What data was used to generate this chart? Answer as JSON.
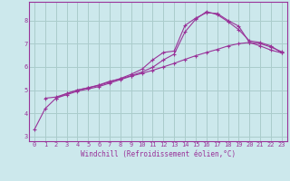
{
  "background_color": "#cce8ec",
  "grid_color": "#aacccc",
  "line_color": "#993399",
  "xlabel": "Windchill (Refroidissement éolien,°C)",
  "xlim": [
    -0.5,
    23.5
  ],
  "ylim": [
    2.8,
    8.8
  ],
  "xticks": [
    0,
    1,
    2,
    3,
    4,
    5,
    6,
    7,
    8,
    9,
    10,
    11,
    12,
    13,
    14,
    15,
    16,
    17,
    18,
    19,
    20,
    21,
    22,
    23
  ],
  "yticks": [
    3,
    4,
    5,
    6,
    7,
    8
  ],
  "curve1_x": [
    0,
    1,
    2,
    3,
    4,
    5,
    6,
    7,
    8,
    9,
    10,
    11,
    12,
    13,
    14,
    15,
    16,
    17,
    18,
    19,
    20,
    21,
    22,
    23
  ],
  "curve1_y": [
    3.3,
    4.2,
    4.65,
    4.8,
    4.95,
    5.05,
    5.15,
    5.3,
    5.45,
    5.6,
    5.72,
    5.85,
    6.0,
    6.15,
    6.32,
    6.48,
    6.62,
    6.75,
    6.9,
    7.0,
    7.05,
    7.0,
    6.85,
    6.65
  ],
  "curve2_x": [
    1,
    2,
    3,
    4,
    5,
    6,
    7,
    8,
    9,
    10,
    11,
    12,
    13,
    14,
    15,
    16,
    17,
    18,
    19,
    20,
    21,
    22,
    23
  ],
  "curve2_y": [
    4.65,
    4.7,
    4.85,
    5.0,
    5.1,
    5.2,
    5.35,
    5.5,
    5.68,
    5.9,
    6.3,
    6.62,
    6.68,
    7.78,
    8.1,
    8.33,
    8.3,
    8.0,
    7.75,
    7.05,
    6.9,
    6.72,
    6.6
  ],
  "curve3_x": [
    2,
    3,
    4,
    5,
    6,
    7,
    8,
    9,
    10,
    11,
    12,
    13,
    14,
    15,
    16,
    17,
    18,
    19,
    20,
    21,
    22,
    23
  ],
  "curve3_y": [
    4.65,
    4.85,
    5.0,
    5.1,
    5.22,
    5.38,
    5.48,
    5.62,
    5.78,
    5.98,
    6.3,
    6.55,
    7.5,
    8.05,
    8.38,
    8.25,
    7.95,
    7.6,
    7.12,
    7.05,
    6.9,
    6.6
  ],
  "marker": "+"
}
